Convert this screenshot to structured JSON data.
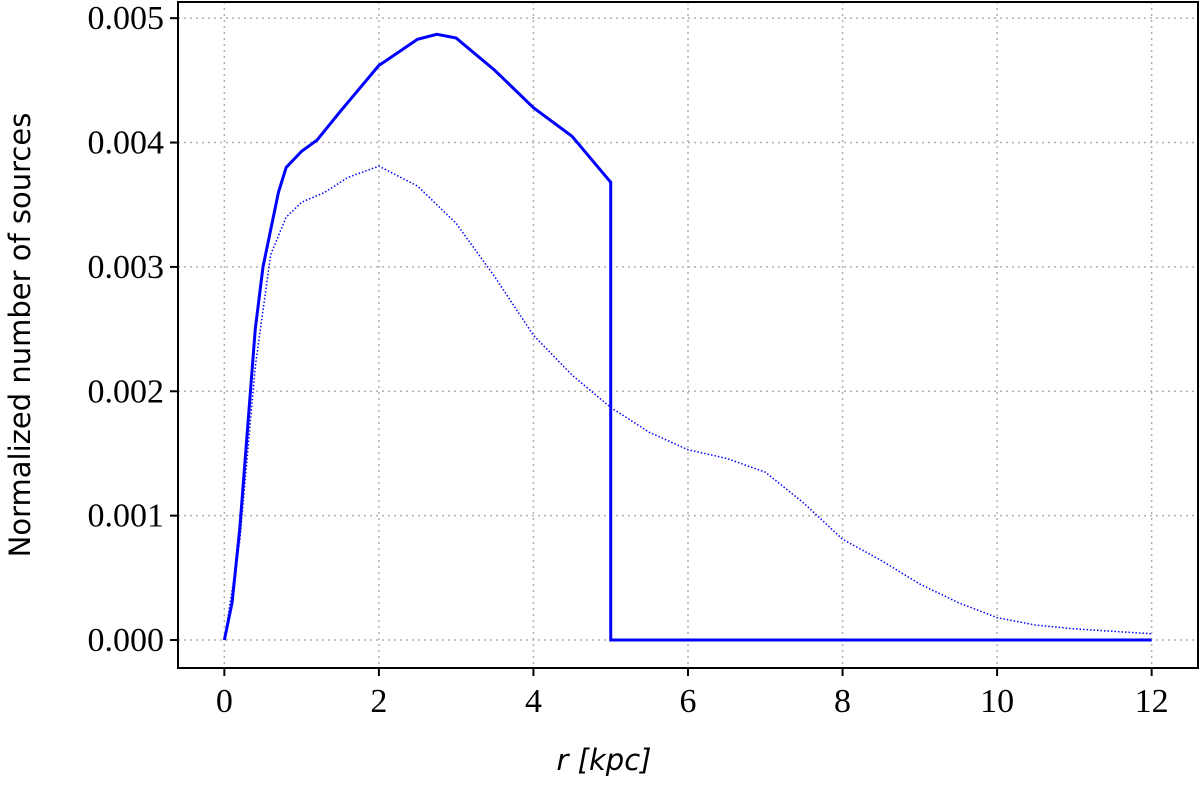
{
  "chart_data": {
    "type": "line",
    "xlabel": "r [kpc]",
    "ylabel": "Normalized number of sources",
    "xlim": [
      -0.6,
      12.6
    ],
    "ylim": [
      -0.000225,
      0.00513
    ],
    "xticks": [
      0,
      2,
      4,
      6,
      8,
      10,
      12
    ],
    "yticks": [
      {
        "value": 0,
        "label": "0.000"
      },
      0.001,
      0.002,
      0.003,
      0.004,
      0.005
    ],
    "grid": true,
    "series": [
      {
        "color": "#0000ff",
        "style": "solid",
        "x": [
          0,
          0.1,
          0.2,
          0.3,
          0.4,
          0.5,
          0.6,
          0.7,
          0.8,
          1.0,
          1.2,
          1.5,
          2.0,
          2.5,
          2.75,
          3.0,
          3.5,
          4.0,
          4.5,
          5.0,
          5.0,
          12
        ],
        "values": [
          0,
          0.0003,
          0.0009,
          0.0017,
          0.0025,
          0.003,
          0.0033,
          0.0036,
          0.0038,
          0.00393,
          0.00402,
          0.00425,
          0.00462,
          0.00483,
          0.00487,
          0.00484,
          0.00458,
          0.00428,
          0.00405,
          0.00368,
          0,
          0
        ]
      },
      {
        "color": "#0000ff",
        "style": "dotted",
        "x": [
          0,
          0.2,
          0.4,
          0.6,
          0.8,
          1.0,
          1.3,
          1.6,
          2.0,
          2.5,
          3.0,
          3.5,
          4.0,
          4.5,
          5.0,
          5.5,
          6.0,
          6.5,
          7.0,
          7.5,
          8.0,
          8.5,
          9.0,
          9.5,
          10.0,
          10.5,
          11.0,
          11.5,
          12.0
        ],
        "values": [
          0,
          0.0008,
          0.0022,
          0.0031,
          0.0034,
          0.00352,
          0.0036,
          0.00372,
          0.00381,
          0.00365,
          0.00335,
          0.00292,
          0.00245,
          0.00213,
          0.00187,
          0.00167,
          0.00153,
          0.00146,
          0.00135,
          0.0011,
          0.00081,
          0.00064,
          0.00045,
          0.0003,
          0.00018,
          0.00012,
          9e-05,
          7e-05,
          5e-05
        ]
      }
    ]
  }
}
